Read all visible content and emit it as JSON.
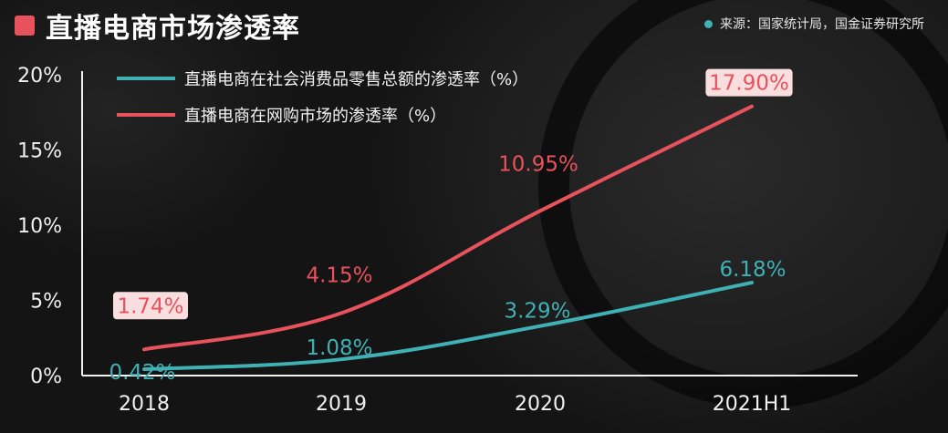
{
  "title": "直播电商市场渗透率",
  "source": "来源：国家统计局，国金证券研究所",
  "colors": {
    "accent": "#e8525c",
    "teal": "#3fb1b5",
    "red": "#e8525c"
  },
  "chart_data": {
    "type": "line",
    "categories": [
      "2018",
      "2019",
      "2020",
      "2021H1"
    ],
    "yticks": [
      "0%",
      "5%",
      "10%",
      "15%",
      "20%"
    ],
    "ylim": [
      0,
      20
    ],
    "legend_position": "top-left",
    "series": [
      {
        "name": "直播电商在社会消费品零售总额的渗透率（%）",
        "color": "#3fb1b5",
        "values": [
          0.42,
          1.08,
          3.29,
          6.18
        ],
        "labels": [
          "0.42%",
          "1.08%",
          "3.29%",
          "6.18%"
        ]
      },
      {
        "name": "直播电商在网购市场的渗透率（%）",
        "color": "#e8525c",
        "values": [
          1.74,
          4.15,
          10.95,
          17.9
        ],
        "labels": [
          "1.74%",
          "4.15%",
          "10.95%",
          "17.90%"
        ],
        "boxed": [
          true,
          false,
          false,
          true
        ]
      }
    ]
  }
}
